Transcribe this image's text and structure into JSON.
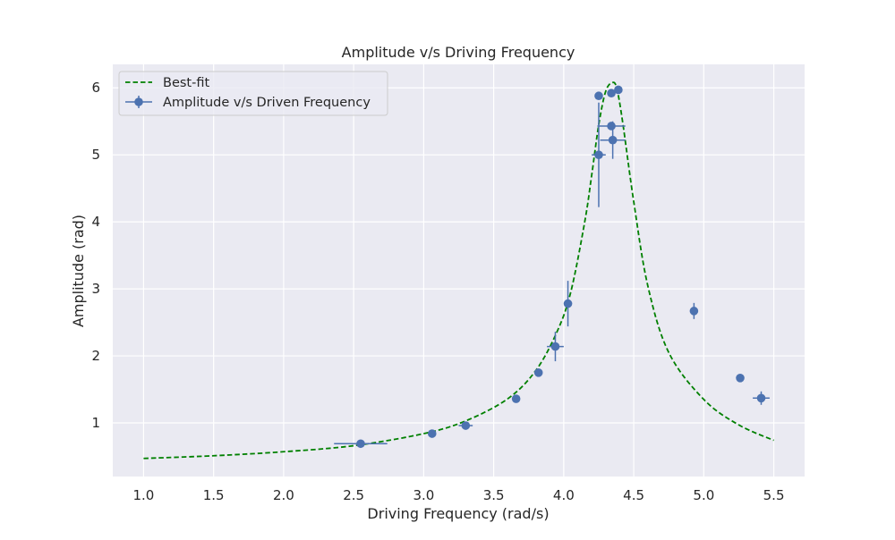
{
  "chart_data": {
    "type": "scatter",
    "title": "Amplitude v/s Driving Frequency",
    "xlabel": "Driving Frequency (rad/s)",
    "ylabel": "Amplitude (rad)",
    "xlim": [
      0.78,
      5.72
    ],
    "ylim": [
      0.2,
      6.35
    ],
    "xticks": [
      1.0,
      1.5,
      2.0,
      2.5,
      3.0,
      3.5,
      4.0,
      4.5,
      5.0,
      5.5
    ],
    "xtick_labels": [
      "1.0",
      "1.5",
      "2.0",
      "2.5",
      "3.0",
      "3.5",
      "4.0",
      "4.5",
      "5.0",
      "5.5"
    ],
    "yticks": [
      1,
      2,
      3,
      4,
      5,
      6
    ],
    "ytick_labels": [
      "1",
      "2",
      "3",
      "4",
      "5",
      "6"
    ],
    "grid": true,
    "legend_position": "top-left",
    "colors": {
      "background": "#eaeaf2",
      "grid": "#ffffff",
      "points": "#4c72b0",
      "fit": "#008000"
    },
    "series": [
      {
        "name": "Best-fit",
        "kind": "line",
        "style": "dashed",
        "x": [
          1.0,
          1.5,
          2.0,
          2.5,
          3.0,
          3.3,
          3.6,
          3.8,
          3.95,
          4.05,
          4.15,
          4.2,
          4.25,
          4.3,
          4.35,
          4.38,
          4.42,
          4.5,
          4.6,
          4.75,
          5.0,
          5.25,
          5.5
        ],
        "y": [
          0.47,
          0.51,
          0.57,
          0.66,
          0.84,
          1.03,
          1.36,
          1.78,
          2.35,
          2.95,
          4.0,
          4.7,
          5.45,
          5.95,
          6.08,
          5.98,
          5.5,
          4.3,
          3.05,
          2.05,
          1.35,
          0.97,
          0.74
        ]
      },
      {
        "name": "Amplitude v/s Driven Frequency",
        "kind": "errorbar",
        "points": [
          {
            "x": 2.55,
            "y": 0.69,
            "xerr": 0.19,
            "yerr": 0.0
          },
          {
            "x": 3.06,
            "y": 0.84,
            "xerr": 0.0,
            "yerr": 0.0
          },
          {
            "x": 3.3,
            "y": 0.96,
            "xerr": 0.05,
            "yerr": 0.05
          },
          {
            "x": 3.66,
            "y": 1.36,
            "xerr": 0.0,
            "yerr": 0.0
          },
          {
            "x": 3.82,
            "y": 1.75,
            "xerr": 0.0,
            "yerr": 0.0
          },
          {
            "x": 3.94,
            "y": 2.14,
            "xerr": 0.06,
            "yerr": 0.22
          },
          {
            "x": 4.03,
            "y": 2.78,
            "xerr": 0.0,
            "yerr": 0.34
          },
          {
            "x": 4.25,
            "y": 5.0,
            "xerr": 0.05,
            "yerr": 0.78
          },
          {
            "x": 4.25,
            "y": 5.88,
            "xerr": 0.0,
            "yerr": 0.0
          },
          {
            "x": 4.34,
            "y": 5.43,
            "xerr": 0.1,
            "yerr": 0.0
          },
          {
            "x": 4.35,
            "y": 5.22,
            "xerr": 0.09,
            "yerr": 0.28
          },
          {
            "x": 4.34,
            "y": 5.92,
            "xerr": 0.0,
            "yerr": 0.0
          },
          {
            "x": 4.39,
            "y": 5.97,
            "xerr": 0.0,
            "yerr": 0.0
          },
          {
            "x": 4.93,
            "y": 2.67,
            "xerr": 0.0,
            "yerr": 0.12
          },
          {
            "x": 5.26,
            "y": 1.67,
            "xerr": 0.0,
            "yerr": 0.0
          },
          {
            "x": 5.41,
            "y": 1.37,
            "xerr": 0.06,
            "yerr": 0.1
          }
        ]
      }
    ]
  }
}
